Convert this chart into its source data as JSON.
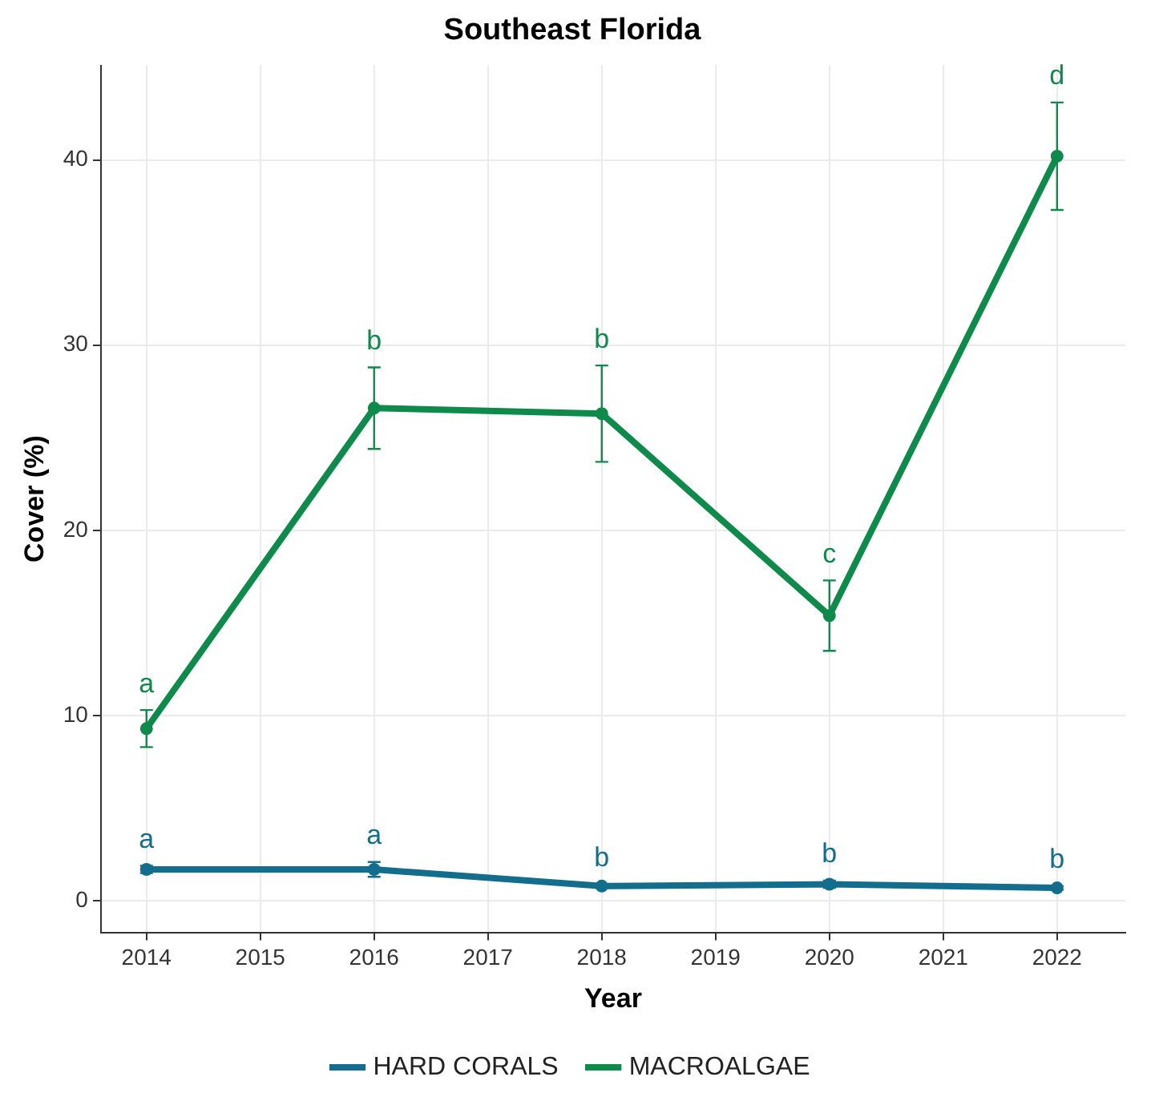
{
  "chart_data": {
    "type": "line",
    "title": "Southeast Florida",
    "xlabel": "Year",
    "ylabel": "Cover (%)",
    "x": [
      2014,
      2016,
      2018,
      2020,
      2022
    ],
    "series": [
      {
        "name": "HARD CORALS",
        "color": "#126e8c",
        "values": [
          1.7,
          1.7,
          0.8,
          0.9,
          0.7
        ],
        "errors": [
          0.2,
          0.4,
          0.1,
          0.2,
          0.1
        ]
      },
      {
        "name": "MACROALGAE",
        "color": "#0e8a4b",
        "values": [
          9.3,
          26.6,
          26.3,
          15.4,
          40.2
        ],
        "errors": [
          1.0,
          2.2,
          2.6,
          1.9,
          2.9
        ]
      }
    ],
    "xlim": [
      2013.6,
      2022.6
    ],
    "xticks": [
      2014,
      2015,
      2016,
      2017,
      2018,
      2019,
      2020,
      2021,
      2022
    ],
    "ylim": [
      -1.7,
      45.1
    ],
    "yticks": [
      0,
      10,
      20,
      30,
      40
    ],
    "grid": true,
    "legend": "bottom",
    "marker": "circle",
    "line_style": "solid",
    "annotations": [
      {
        "text": "a",
        "x": 2014,
        "y": 9.3
      },
      {
        "text": "b",
        "x": 2016,
        "y": 26.6
      },
      {
        "text": "b",
        "x": 2018,
        "y": 26.3
      },
      {
        "text": "c",
        "x": 2020,
        "y": 15.4
      },
      {
        "text": "d",
        "x": 2022,
        "y": 40.2
      },
      {
        "text": "a",
        "x": 2014,
        "y": 1.7
      },
      {
        "text": "a",
        "x": 2016,
        "y": 1.7
      },
      {
        "text": "b",
        "x": 2018,
        "y": 0.8
      },
      {
        "text": "b",
        "x": 2020,
        "y": 0.9
      },
      {
        "text": "b",
        "x": 2022,
        "y": 0.7
      }
    ]
  }
}
